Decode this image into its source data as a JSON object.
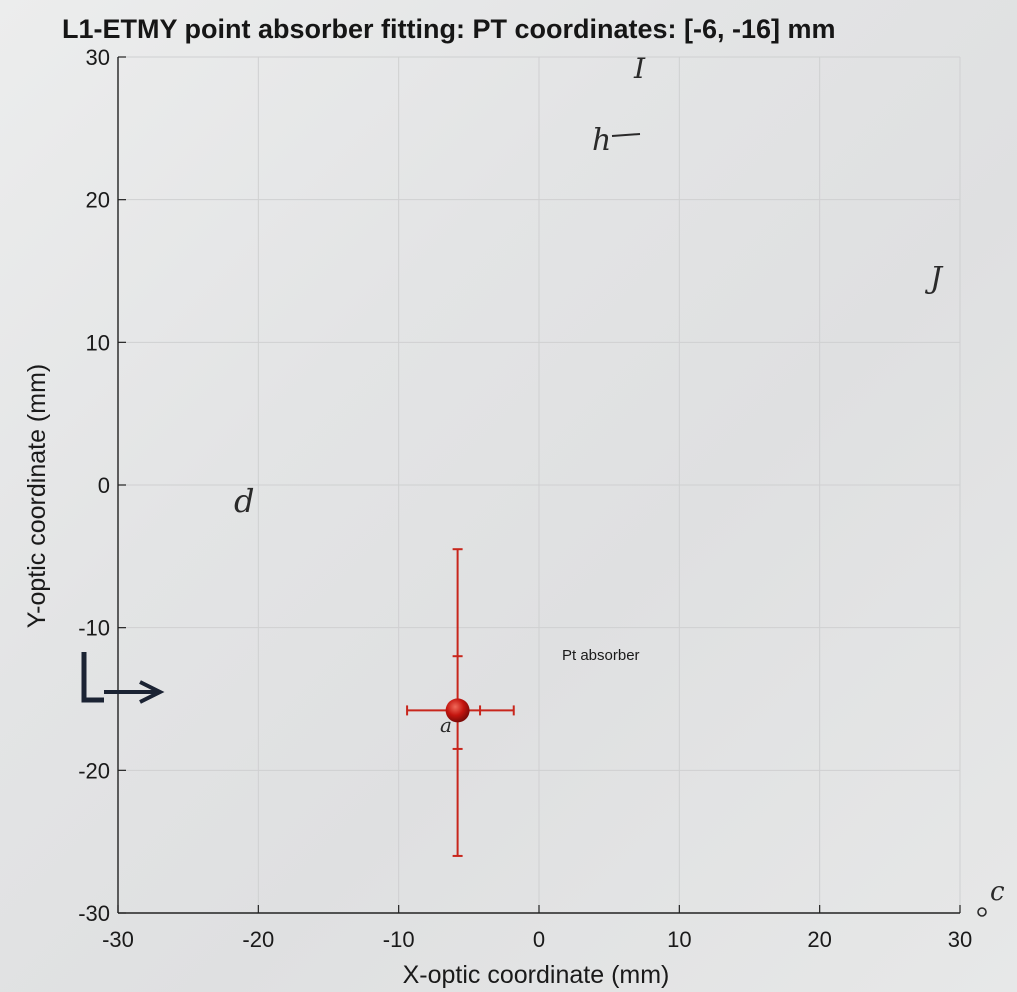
{
  "chart_data": {
    "type": "scatter",
    "title": "L1-ETMY point absorber fitting: PT coordinates: [-6, -16] mm",
    "xlabel": "X-optic coordinate (mm)",
    "ylabel": "Y-optic coordinate (mm)",
    "xlim": [
      -30,
      30
    ],
    "ylim": [
      -30,
      30
    ],
    "xticks": [
      -30,
      -20,
      -10,
      0,
      10,
      20,
      30
    ],
    "yticks": [
      -30,
      -20,
      -10,
      0,
      10,
      20,
      30
    ],
    "grid": true,
    "point": {
      "x": -5.8,
      "y": -15.8,
      "color": "#c4150f"
    },
    "error_x": {
      "min": -9.4,
      "max": -1.8,
      "caps": [
        -4.2
      ]
    },
    "error_y": {
      "min": -26,
      "max": -4.5,
      "caps": [
        -12,
        -18.5
      ]
    },
    "annotation": {
      "text": "Pt absorber",
      "x": 1.5,
      "y": -11
    }
  },
  "handwritten": {
    "marks": [
      "I",
      "h",
      "J",
      "d",
      "a",
      "c"
    ],
    "arrow_label": "L"
  },
  "colors": {
    "errorbar": "#c8261c",
    "marker": "#c4150f",
    "grid": "#cfd0d1",
    "axis": "#222222",
    "ink": "#1b2333"
  }
}
